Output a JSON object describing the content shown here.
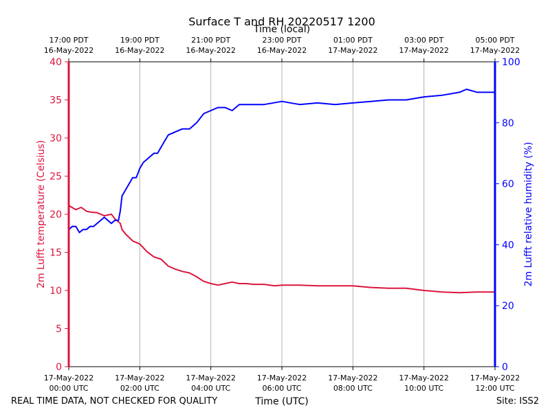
{
  "chart_data": {
    "type": "line",
    "title": "Surface T and RH 20220517 1200",
    "top_axis_label": "Time (local)",
    "xlabel": "Time (UTC)",
    "ylabel_left": "2m Lufft temperature (Celsius)",
    "ylabel_right": "2m Lufft relative humidity (%)",
    "footer_left": "REAL TIME DATA, NOT CHECKED FOR QUALITY",
    "footer_right": "Site: ISS2",
    "xlim_hours_utc": [
      0,
      12
    ],
    "ylim_left": [
      0,
      40
    ],
    "ylim_right": [
      0,
      100
    ],
    "grid": "vertical",
    "colors": {
      "temperature": "#dc143c",
      "humidity": "#0000ff",
      "axes": "#000000",
      "grid": "#b0b0b0"
    },
    "bottom_ticks": [
      {
        "hour": 0,
        "date": "17-May-2022",
        "time": "00:00 UTC"
      },
      {
        "hour": 2,
        "date": "17-May-2022",
        "time": "02:00 UTC"
      },
      {
        "hour": 4,
        "date": "17-May-2022",
        "time": "04:00 UTC"
      },
      {
        "hour": 6,
        "date": "17-May-2022",
        "time": "06:00 UTC"
      },
      {
        "hour": 8,
        "date": "17-May-2022",
        "time": "08:00 UTC"
      },
      {
        "hour": 10,
        "date": "17-May-2022",
        "time": "10:00 UTC"
      },
      {
        "hour": 12,
        "date": "17-May-2022",
        "time": "12:00 UTC"
      }
    ],
    "top_ticks": [
      {
        "hour": 0,
        "time": "17:00 PDT",
        "date": "16-May-2022"
      },
      {
        "hour": 2,
        "time": "19:00 PDT",
        "date": "16-May-2022"
      },
      {
        "hour": 4,
        "time": "21:00 PDT",
        "date": "16-May-2022"
      },
      {
        "hour": 6,
        "time": "23:00 PDT",
        "date": "16-May-2022"
      },
      {
        "hour": 8,
        "time": "01:00 PDT",
        "date": "17-May-2022"
      },
      {
        "hour": 10,
        "time": "03:00 PDT",
        "date": "17-May-2022"
      },
      {
        "hour": 12,
        "time": "05:00 PDT",
        "date": "17-May-2022"
      }
    ],
    "left_ticks": [
      0,
      5,
      10,
      15,
      20,
      25,
      30,
      35,
      40
    ],
    "right_ticks": [
      0,
      20,
      40,
      60,
      80,
      100
    ],
    "series": [
      {
        "name": "temperature",
        "axis": "left",
        "x": [
          0.0,
          0.05,
          0.2,
          0.35,
          0.5,
          0.6,
          0.8,
          1.0,
          1.1,
          1.2,
          1.3,
          1.45,
          1.5,
          1.6,
          1.8,
          2.0,
          2.2,
          2.4,
          2.6,
          2.8,
          3.0,
          3.2,
          3.4,
          3.6,
          3.8,
          4.0,
          4.2,
          4.4,
          4.6,
          4.8,
          5.0,
          5.2,
          5.5,
          5.8,
          6.0,
          6.5,
          7.0,
          7.5,
          8.0,
          8.5,
          9.0,
          9.5,
          10.0,
          10.5,
          11.0,
          11.5,
          12.0
        ],
        "values": [
          21.2,
          21.0,
          20.6,
          20.9,
          20.4,
          20.3,
          20.2,
          19.8,
          19.9,
          20.0,
          19.4,
          18.8,
          18.0,
          17.4,
          16.5,
          16.1,
          15.1,
          14.4,
          14.1,
          13.2,
          12.8,
          12.5,
          12.3,
          11.8,
          11.2,
          10.9,
          10.7,
          10.9,
          11.1,
          10.9,
          10.9,
          10.8,
          10.8,
          10.6,
          10.7,
          10.7,
          10.6,
          10.6,
          10.6,
          10.4,
          10.3,
          10.3,
          10.0,
          9.8,
          9.7,
          9.8,
          9.8
        ]
      },
      {
        "name": "humidity",
        "axis": "right",
        "x": [
          0.0,
          0.1,
          0.2,
          0.3,
          0.4,
          0.5,
          0.6,
          0.7,
          0.8,
          0.9,
          1.0,
          1.1,
          1.2,
          1.3,
          1.4,
          1.45,
          1.5,
          1.6,
          1.7,
          1.8,
          1.9,
          2.0,
          2.1,
          2.2,
          2.3,
          2.4,
          2.5,
          2.6,
          2.7,
          2.8,
          3.0,
          3.2,
          3.4,
          3.6,
          3.8,
          4.0,
          4.2,
          4.4,
          4.6,
          4.8,
          5.0,
          5.5,
          6.0,
          6.5,
          7.0,
          7.5,
          8.0,
          8.5,
          9.0,
          9.5,
          10.0,
          10.5,
          11.0,
          11.2,
          11.5,
          12.0
        ],
        "values": [
          45.0,
          46.0,
          46.0,
          44.0,
          45.0,
          45.0,
          46.0,
          46.0,
          47.0,
          48.0,
          49.0,
          48.0,
          47.0,
          48.0,
          48.0,
          51.0,
          56.0,
          58.0,
          60.0,
          62.0,
          62.0,
          65.0,
          67.0,
          68.0,
          69.0,
          70.0,
          70.0,
          72.0,
          74.0,
          76.0,
          77.0,
          78.0,
          78.0,
          80.0,
          83.0,
          84.0,
          85.0,
          85.0,
          84.0,
          86.0,
          86.0,
          86.0,
          87.0,
          86.0,
          86.5,
          86.0,
          86.5,
          87.0,
          87.5,
          87.5,
          88.5,
          89.0,
          90.0,
          91.0,
          90.0,
          90.0
        ]
      }
    ]
  }
}
